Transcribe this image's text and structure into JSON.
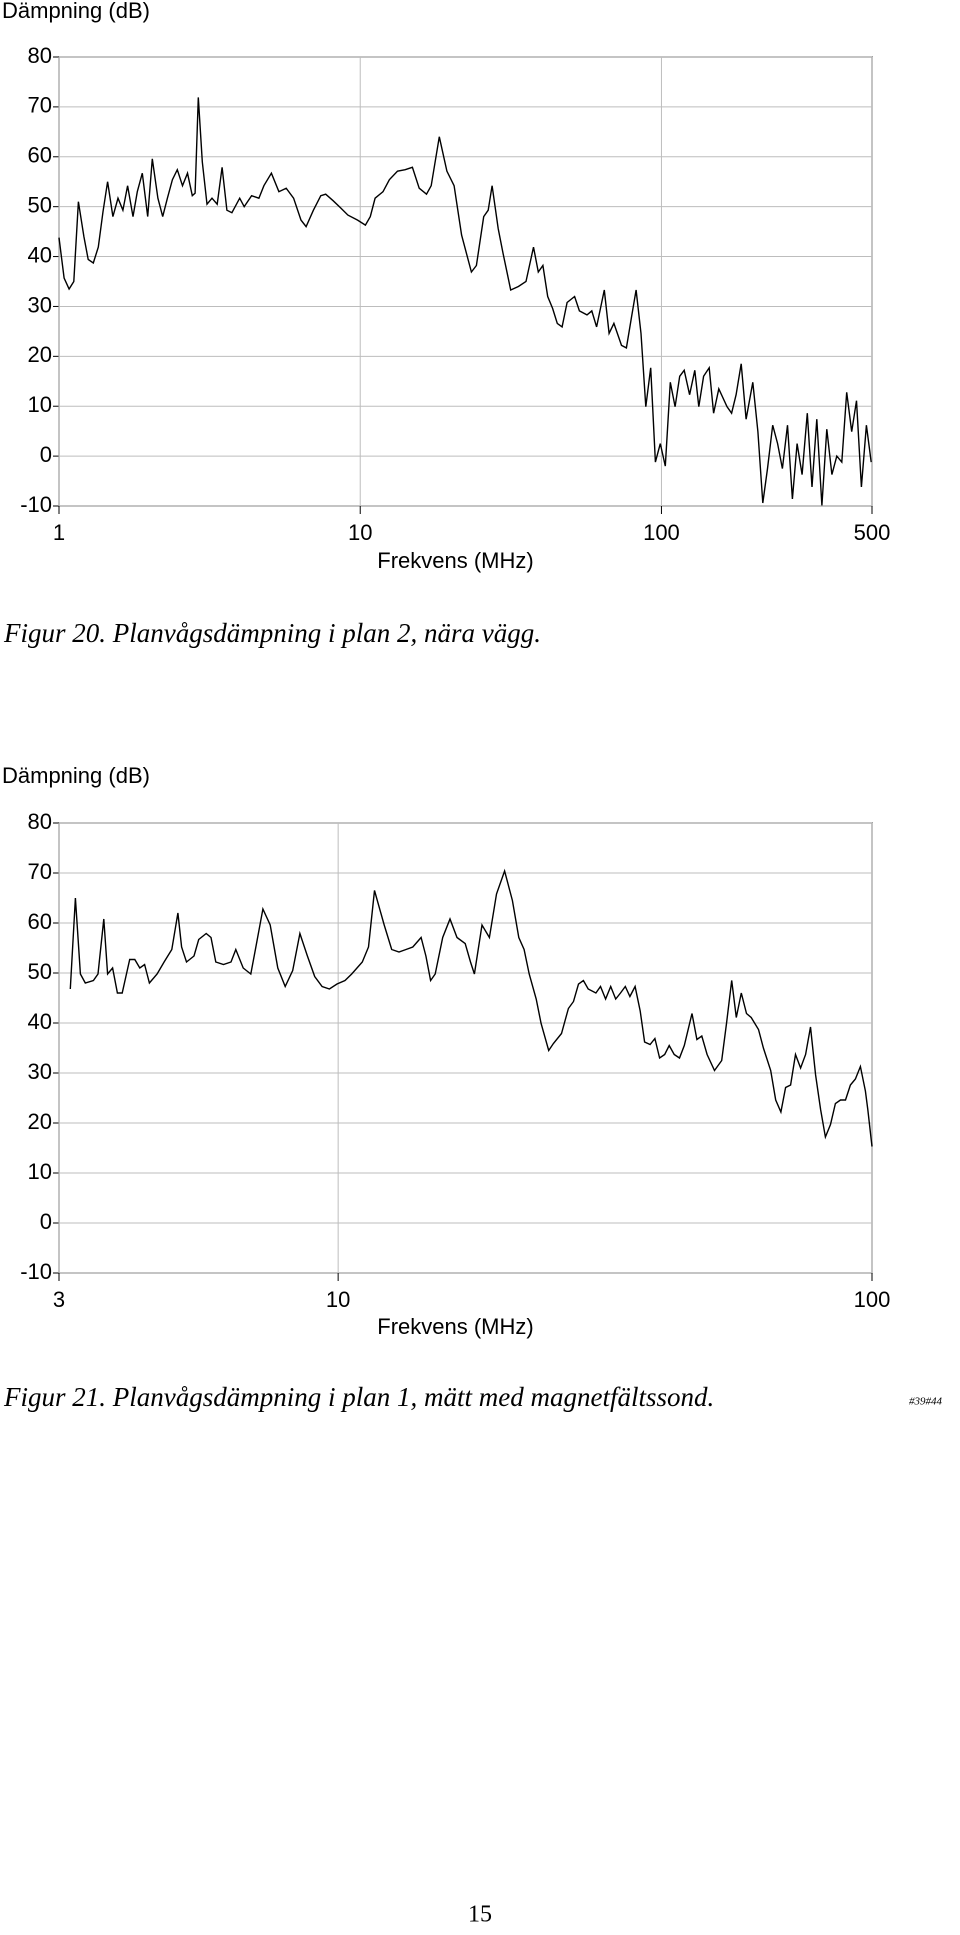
{
  "chart_data": [
    {
      "type": "line",
      "ylabel": "Dämpning (dB)",
      "xlabel": "Frekvens (MHz)",
      "caption": "Figur 20. Planvågsdämpning i plan 2, nära vägg.",
      "xscale": "log",
      "grid": true,
      "color": "#000000",
      "xlim": [
        1,
        500
      ],
      "xticks": [
        1,
        10,
        100,
        500
      ],
      "ylim": [
        -10,
        80
      ],
      "yticks": [
        -10,
        0,
        10,
        20,
        30,
        40,
        50,
        60,
        70,
        80
      ],
      "x": [
        1,
        1.04,
        1.08,
        1.12,
        1.16,
        1.21,
        1.25,
        1.3,
        1.35,
        1.4,
        1.45,
        1.51,
        1.57,
        1.63,
        1.69,
        1.76,
        1.82,
        1.89,
        1.97,
        2.04,
        2.13,
        2.21,
        2.29,
        2.38,
        2.47,
        2.57,
        2.67,
        2.77,
        2.83,
        2.9,
        2.99,
        3.1,
        3.22,
        3.35,
        3.48,
        3.61,
        3.75,
        3.98,
        4.12,
        4.36,
        4.61,
        4.79,
        5.07,
        5.37,
        5.68,
        6.01,
        6.36,
        6.61,
        6.99,
        7.4,
        7.68,
        8.13,
        8.6,
        9.1,
        9.8,
        10.4,
        10.8,
        11.2,
        11.9,
        12.5,
        13.3,
        14.1,
        14.9,
        15.7,
        16.6,
        17.2,
        18.3,
        19.4,
        20.5,
        21.7,
        23.4,
        24.3,
        25.7,
        26.6,
        27.4,
        28.7,
        29.8,
        31.6,
        33.5,
        35.5,
        37.6,
        39,
        40.4,
        41.9,
        43.5,
        45.1,
        46.8,
        48.6,
        51.5,
        53.4,
        56.6,
        58.7,
        60.9,
        64.6,
        67,
        69.5,
        73.7,
        76.5,
        79.4,
        82.4,
        85.5,
        88.7,
        92.1,
        95.5,
        99.1,
        103,
        107,
        111,
        115,
        119,
        124,
        129,
        133,
        138,
        144,
        149,
        155,
        165,
        171,
        177,
        184,
        191,
        201,
        209,
        217,
        225,
        234,
        243,
        252,
        262,
        272,
        282,
        293,
        305,
        316,
        328,
        341,
        354,
        368,
        382,
        397,
        412,
        428,
        444,
        461,
        479,
        497
      ],
      "values": [
        43.8,
        35.7,
        33.5,
        35,
        51,
        44,
        39.4,
        38.7,
        41.9,
        49,
        55,
        48,
        51.7,
        49.3,
        54.2,
        48,
        53,
        56.7,
        48,
        59.6,
        51.7,
        48,
        51.7,
        55.4,
        57.4,
        54.2,
        56.7,
        52.2,
        52.7,
        71.9,
        59,
        50.5,
        51.7,
        50.5,
        57.9,
        49.3,
        48.8,
        51.7,
        50,
        52.2,
        51.7,
        54.2,
        56.7,
        53,
        53.7,
        51.7,
        47.3,
        46,
        49.3,
        52.2,
        52.5,
        51.2,
        49.8,
        48.3,
        47.3,
        46.3,
        48,
        51.7,
        53,
        55.4,
        57.1,
        57.4,
        57.9,
        53.7,
        52.5,
        54.2,
        64,
        57.1,
        54.2,
        44.3,
        36.9,
        38.2,
        48,
        49.3,
        54.2,
        45.6,
        40.6,
        33.3,
        34,
        35,
        41.9,
        36.9,
        38.2,
        32,
        29.6,
        26.6,
        25.9,
        30.8,
        32,
        29.1,
        28.3,
        29.1,
        25.9,
        33.3,
        24.6,
        26.6,
        22.2,
        21.7,
        27.6,
        33.3,
        24.6,
        9.9,
        17.7,
        -1.2,
        2.5,
        -2,
        14.8,
        9.9,
        16,
        17.2,
        12.3,
        17.2,
        9.9,
        16,
        17.7,
        8.6,
        13.5,
        9.9,
        8.6,
        12.3,
        18.5,
        7.4,
        14.8,
        4.9,
        -9.4,
        -2.5,
        6.2,
        2.5,
        -2.5,
        6.2,
        -8.6,
        2.5,
        -3.7,
        8.6,
        -6.2,
        7.4,
        -9.9,
        5.4,
        -3.7,
        0,
        -1.2,
        12.8,
        4.9,
        11.1,
        -6.2,
        6.2,
        -1.2
      ]
    },
    {
      "type": "line",
      "ylabel": "Dämpning (dB)",
      "xlabel": "Frekvens (MHz)",
      "caption": "Figur 21. Planvågsdämpning i plan 1, mätt med magnetfältssond.",
      "xscale": "log",
      "grid": true,
      "color": "#000000",
      "xlim": [
        3,
        100
      ],
      "xticks": [
        3,
        10,
        100
      ],
      "ylim": [
        -10,
        80
      ],
      "yticks": [
        -10,
        0,
        10,
        20,
        30,
        40,
        50,
        60,
        70,
        80
      ],
      "x": [
        3.15,
        3.22,
        3.29,
        3.36,
        3.48,
        3.55,
        3.64,
        3.7,
        3.78,
        3.86,
        3.94,
        4.07,
        4.16,
        4.25,
        4.34,
        4.43,
        4.58,
        4.72,
        4.88,
        5.01,
        5.09,
        5.2,
        5.37,
        5.48,
        5.66,
        5.78,
        5.9,
        6.1,
        6.3,
        6.43,
        6.64,
        6.86,
        7,
        7.23,
        7.46,
        7.71,
        7.96,
        8.22,
        8.48,
        8.76,
        9.04,
        9.33,
        9.63,
        9.95,
        10.3,
        10.6,
        11.1,
        11.4,
        11.7,
        12.2,
        12.6,
        13,
        13.4,
        13.8,
        14.3,
        14.6,
        14.9,
        15.2,
        15.7,
        16.2,
        16.7,
        17.3,
        17.7,
        18,
        18.6,
        19.2,
        19.8,
        20.5,
        21.2,
        21.8,
        22.3,
        22.8,
        23.5,
        24,
        24.8,
        25.3,
        26.2,
        27,
        27.6,
        28.2,
        28.8,
        29.4,
        30.4,
        31,
        31.7,
        32.4,
        33.1,
        33.8,
        34.5,
        35.2,
        36,
        36.8,
        37.5,
        38.4,
        39.2,
        40,
        40.9,
        41.7,
        42.6,
        43.6,
        44.5,
        46,
        47,
        48,
        49.1,
        50.7,
        52.3,
        53.4,
        54.6,
        55.7,
        56.9,
        58.2,
        59.4,
        61.3,
        62.6,
        64.6,
        66,
        67.5,
        68.9,
        70.4,
        71.9,
        73.5,
        75.1,
        76.7,
        78.4,
        80.1,
        81.8,
        83.6,
        85.4,
        87.3,
        89.2,
        91.1,
        93.1,
        95.1,
        97.2,
        98.2,
        100
      ],
      "values": [
        46.8,
        65,
        49.8,
        48,
        48.5,
        49.8,
        60.8,
        49.8,
        51,
        46,
        46,
        52.7,
        52.7,
        51,
        51.7,
        48,
        49.8,
        52.2,
        54.7,
        62,
        55.2,
        52.2,
        53.4,
        56.7,
        57.9,
        57.1,
        52.2,
        51.7,
        52.2,
        54.7,
        51,
        49.8,
        54.7,
        62.8,
        59.6,
        51,
        47.3,
        50.5,
        57.9,
        53.4,
        49.3,
        47.3,
        46.8,
        47.8,
        48.5,
        49.8,
        52.2,
        55.2,
        66.5,
        59.6,
        54.7,
        54.2,
        54.7,
        55.2,
        57.1,
        53.4,
        48.5,
        49.8,
        57.1,
        60.8,
        57.1,
        55.9,
        52.2,
        49.8,
        59.6,
        57.1,
        65.8,
        70.4,
        64.5,
        57.1,
        54.7,
        49.8,
        44.8,
        39.9,
        34.5,
        35.9,
        37.9,
        42.9,
        44.3,
        47.8,
        48.5,
        46.8,
        46,
        47.3,
        44.8,
        47.3,
        44.8,
        46,
        47.3,
        45.3,
        47.3,
        42.4,
        36.2,
        35.7,
        36.9,
        33,
        33.7,
        35.5,
        33.7,
        33,
        35.5,
        41.9,
        36.7,
        37.4,
        33.7,
        30.5,
        32.5,
        39.9,
        48.5,
        41.1,
        46,
        41.9,
        41.1,
        38.7,
        35,
        30.5,
        24.6,
        22.2,
        27.1,
        27.6,
        33.7,
        31,
        33.7,
        39.2,
        29.6,
        22.7,
        17.2,
        19.7,
        23.9,
        24.6,
        24.6,
        27.6,
        28.8,
        31.3,
        26.4,
        22.7,
        15.3
      ]
    }
  ],
  "footnote": "#39#44",
  "page_number": "15"
}
